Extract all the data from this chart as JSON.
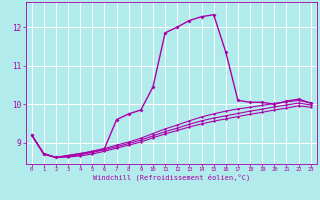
{
  "xlabel": "Windchill (Refroidissement éolien,°C)",
  "background_color": "#b2ebeb",
  "grid_color": "#c8e8e8",
  "line_color": "#aa00aa",
  "xlim": [
    -0.5,
    23.5
  ],
  "ylim": [
    8.45,
    12.65
  ],
  "xticks": [
    0,
    1,
    2,
    3,
    4,
    5,
    6,
    7,
    8,
    9,
    10,
    11,
    12,
    13,
    14,
    15,
    16,
    17,
    18,
    19,
    20,
    21,
    22,
    23
  ],
  "yticks": [
    9,
    10,
    11,
    12
  ],
  "series": [
    [
      9.2,
      8.7,
      8.62,
      8.67,
      8.72,
      8.77,
      8.85,
      9.6,
      9.75,
      9.85,
      10.45,
      11.85,
      12.0,
      12.17,
      12.27,
      12.32,
      11.35,
      10.1,
      10.05,
      10.05,
      10.0,
      10.08,
      10.13,
      10.03
    ],
    [
      9.2,
      8.72,
      8.62,
      8.67,
      8.72,
      8.78,
      8.85,
      8.94,
      9.02,
      9.12,
      9.24,
      9.36,
      9.46,
      9.57,
      9.67,
      9.75,
      9.82,
      9.88,
      9.92,
      9.97,
      10.02,
      10.06,
      10.1,
      10.03
    ],
    [
      9.2,
      8.72,
      8.62,
      8.65,
      8.69,
      8.75,
      8.82,
      8.9,
      8.98,
      9.07,
      9.18,
      9.29,
      9.38,
      9.48,
      9.57,
      9.64,
      9.7,
      9.76,
      9.82,
      9.87,
      9.93,
      9.98,
      10.03,
      9.98
    ],
    [
      9.2,
      8.72,
      8.62,
      8.63,
      8.66,
      8.71,
      8.78,
      8.86,
      8.94,
      9.02,
      9.13,
      9.23,
      9.32,
      9.41,
      9.49,
      9.56,
      9.62,
      9.68,
      9.74,
      9.79,
      9.85,
      9.9,
      9.96,
      9.92
    ]
  ]
}
